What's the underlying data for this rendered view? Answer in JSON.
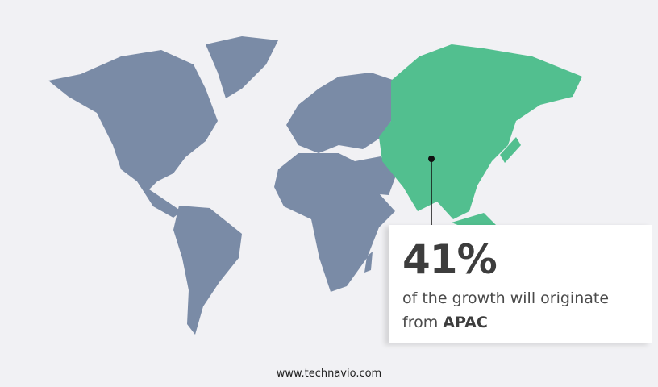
{
  "colors": {
    "background": "#f1f1f4",
    "land": "#7a8ba6",
    "highlight_region": "#52bf8f",
    "text": "#3d3d3d"
  },
  "highlighted_region": "APAC",
  "callout": {
    "stat": "41%",
    "description": "of the growth will originate",
    "from_label": "from",
    "region": "APAC"
  },
  "footer": {
    "url": "www.technavio.com"
  }
}
